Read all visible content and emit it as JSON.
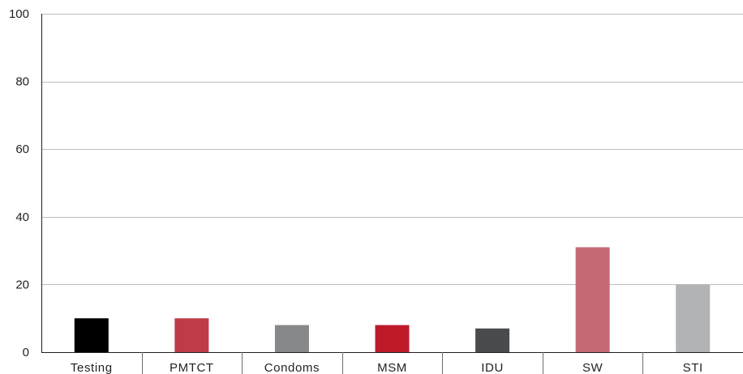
{
  "chart_data": {
    "type": "bar",
    "title": "",
    "xlabel": "",
    "ylabel": "",
    "ylim": [
      0,
      100
    ],
    "y_ticks": [
      "0",
      "20",
      "40",
      "60",
      "80",
      "100"
    ],
    "grid": true,
    "categories": [
      "Testing",
      "PMTCT",
      "Condoms",
      "MSM",
      "IDU",
      "SW",
      "STI"
    ],
    "values": [
      10,
      10,
      8,
      8,
      7,
      31,
      20
    ],
    "colors": [
      "#000000",
      "#bf3b47",
      "#87888a",
      "#be1a2a",
      "#4a4b4d",
      "#c56976",
      "#b2b3b5"
    ]
  }
}
